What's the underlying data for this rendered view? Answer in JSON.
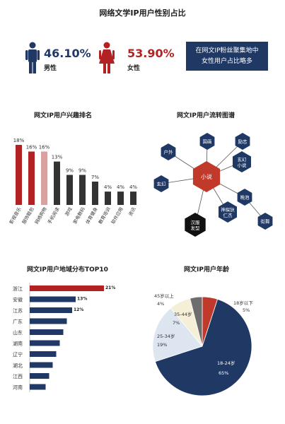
{
  "page_title": "网络文学IP用户性别占比",
  "gender": {
    "male": {
      "pct": "46.10%",
      "label": "男性",
      "color": "#1f3864"
    },
    "female": {
      "pct": "53.90%",
      "label": "女性",
      "color": "#b22222"
    },
    "note_line1": "在网文IP粉丝聚集地中",
    "note_line2": "女性用户占比略多"
  },
  "flow": {
    "title": "网文IP用户流转图谱",
    "center": "小说",
    "nodes": [
      "户外",
      "国画",
      "励志",
      "玄幻小说",
      "玄幻",
      "神探狄仁杰",
      "晚泡",
      "街舞",
      "汉服发型"
    ]
  },
  "chart_data": [
    {
      "type": "bar",
      "title": "网文IP用户兴趣排名",
      "categories": [
        "影视音乐",
        "服饰鞋包",
        "网络购物",
        "手机阅读",
        "游戏",
        "家电数码",
        "体育健身",
        "教育培训",
        "软件应用",
        "资讯"
      ],
      "values": [
        18,
        16,
        16,
        13,
        9,
        9,
        7,
        4,
        4,
        4
      ],
      "value_labels": [
        "18%",
        "16%",
        "16%",
        "13%",
        "9%",
        "9%",
        "7%",
        "4%",
        "4%",
        "4%"
      ],
      "colors": [
        "#b22222",
        "#b22222",
        "#d9a0a0",
        "#333333",
        "#333333",
        "#333333",
        "#333333",
        "#333333",
        "#333333",
        "#333333"
      ]
    },
    {
      "type": "bar",
      "orientation": "horizontal",
      "title": "网文IP用户地域分布TOP10",
      "categories": [
        "浙江",
        "安徽",
        "江苏",
        "广东",
        "山东",
        "湖南",
        "辽宁",
        "湖北",
        "江西",
        "河南"
      ],
      "values": [
        21,
        13,
        12,
        10.5,
        9.5,
        8.5,
        7.5,
        6.5,
        5.5,
        4.5
      ],
      "value_labels": [
        "21%",
        "13%",
        "12%",
        "",
        "",
        "",
        "",
        "",
        "",
        ""
      ],
      "colors": [
        "#b22222",
        "#1f3864",
        "#1f3864",
        "#1f3864",
        "#1f3864",
        "#1f3864",
        "#1f3864",
        "#1f3864",
        "#1f3864",
        "#1f3864"
      ]
    },
    {
      "type": "pie",
      "title": "网文IP用户年龄",
      "slices": [
        {
          "label": "18岁以下",
          "pct_label": "5%",
          "value": 5,
          "color": "#c0392b"
        },
        {
          "label": "18-24岁",
          "pct_label": "65%",
          "value": 65,
          "color": "#1f3864"
        },
        {
          "label": "25-34岁",
          "pct_label": "19%",
          "value": 19,
          "color": "#dde5f0"
        },
        {
          "label": "35-44岁",
          "pct_label": "7%",
          "value": 7,
          "color": "#f4efd6"
        },
        {
          "label": "45岁以上",
          "pct_label": "4%",
          "value": 4,
          "color": "#6d6d6d"
        }
      ]
    }
  ]
}
